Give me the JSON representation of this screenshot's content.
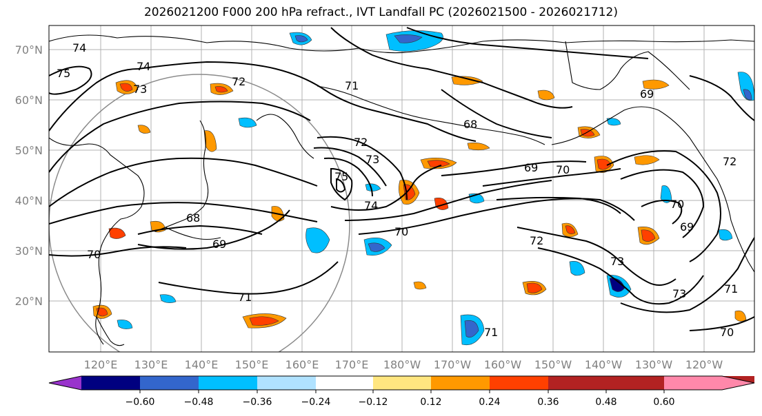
{
  "title": "2026021200 F000 200 hPa refract., IVT Landfall PC (2026021500 - 2026021712)",
  "map": {
    "lat_labels": [
      "70°N",
      "60°N",
      "50°N",
      "40°N",
      "30°N",
      "20°N"
    ],
    "lon_labels": [
      "120°E",
      "130°E",
      "140°E",
      "150°E",
      "160°E",
      "170°E",
      "180°W",
      "170°W",
      "160°W",
      "150°W",
      "140°W",
      "130°W",
      "120°W"
    ],
    "contour_labels": [
      "74",
      "75",
      "74",
      "73",
      "72",
      "71",
      "68",
      "72",
      "73",
      "75",
      "74",
      "70",
      "69",
      "70",
      "69",
      "68",
      "70",
      "71",
      "72",
      "73",
      "73",
      "71",
      "70",
      "69",
      "70",
      "69",
      "71",
      "72"
    ]
  },
  "colorbar": {
    "colors": [
      "#9933cc",
      "#000080",
      "#3366cc",
      "#00bfff",
      "#b0e2ff",
      "#ffffff",
      "#ffe680",
      "#ff9900",
      "#ff4000",
      "#b22222",
      "#ff88aa"
    ],
    "tick_labels": [
      "−0.60",
      "−0.48",
      "−0.36",
      "−0.24",
      "−0.12",
      "0.12",
      "0.24",
      "0.36",
      "0.48",
      "0.60"
    ]
  }
}
